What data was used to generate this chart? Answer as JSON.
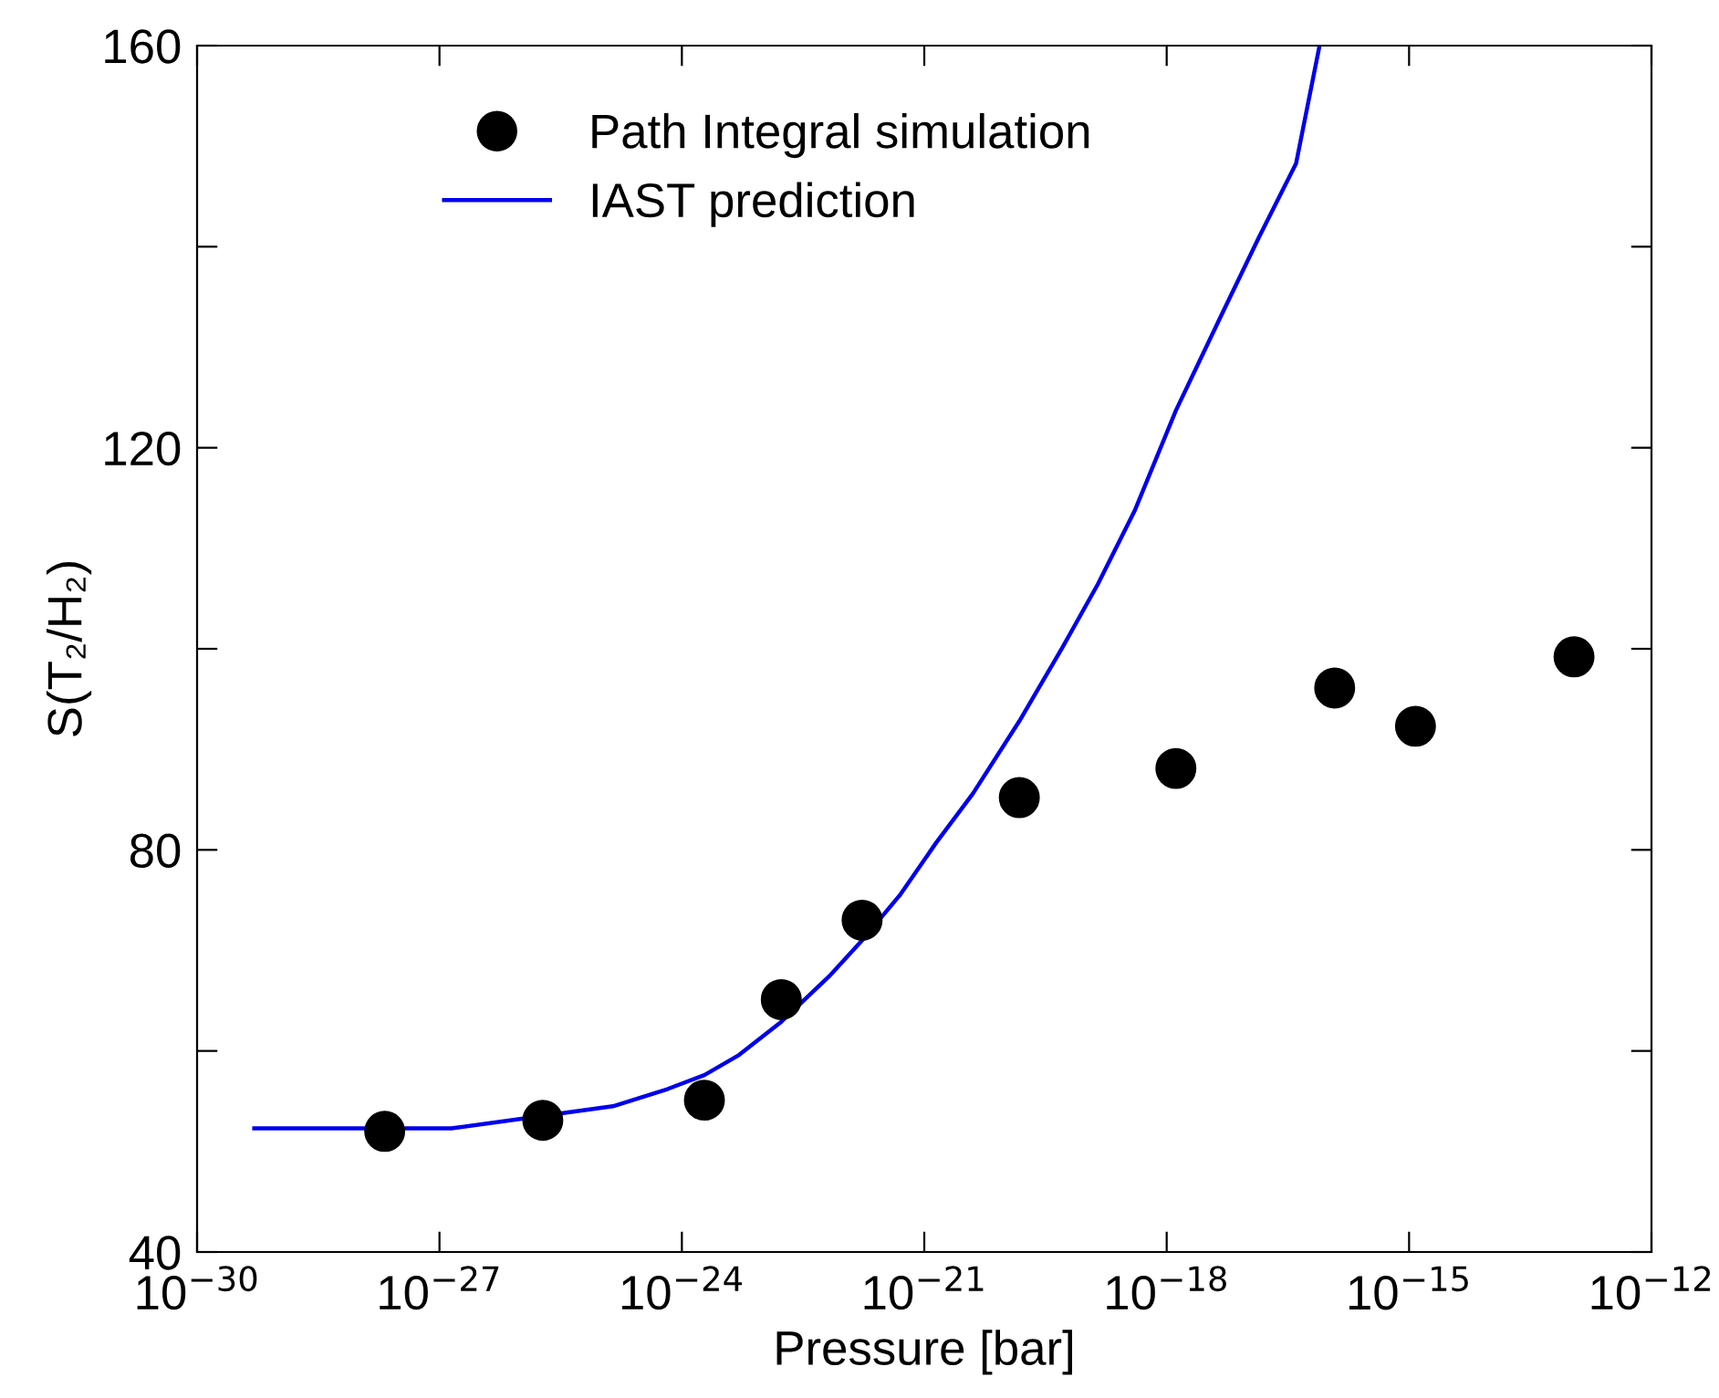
{
  "chart_data": {
    "type": "scatter",
    "xlabel": "Pressure [bar]",
    "ylabel": "S(T₂/H₂)",
    "log": "x",
    "xlim": [
      1e-30,
      1e-12
    ],
    "ylim": [
      40,
      160
    ],
    "xticks": [
      {
        "value": 1e-30,
        "label": "10$^{−30}$"
      },
      {
        "value": 1e-27,
        "label": "10$^{−27}$"
      },
      {
        "value": 1e-24,
        "label": "10$^{−24}$"
      },
      {
        "value": 1e-21,
        "label": "10$^{−21}$"
      },
      {
        "value": 1e-18,
        "label": "10$^{−18}$"
      },
      {
        "value": 1e-15,
        "label": "10$^{−15}$"
      },
      {
        "value": 1e-12,
        "label": "10$^{−12}$"
      }
    ],
    "yticks": [
      40,
      {
        "value": 60,
        "label": null
      },
      80,
      {
        "value": 100,
        "label": null
      },
      120,
      {
        "value": 140,
        "label": null
      },
      160
    ],
    "grid": false,
    "legend": "top left",
    "series": [
      {
        "name": "Path Integral simulation",
        "color": "#000000",
        "marker": "circle",
        "x": [
          2.1e-28,
          1.9e-26,
          1.9e-24,
          1.7e-23,
          1.7e-22,
          1.5e-20,
          1.3e-18,
          1.2e-16,
          1.2e-15,
          1.1e-13
        ],
        "values": [
          52.0,
          53.1,
          55.1,
          65.1,
          73.0,
          85.2,
          88.1,
          96.1,
          92.3,
          99.2
        ]
      },
      {
        "name": "IAST prediction",
        "type": "line",
        "color": "#0000ee",
        "line_style": "solid",
        "marker": "none",
        "x": [
          5.1e-30,
          1.4e-27,
          1.4e-25,
          6.6e-25,
          1.9e-24,
          5.1e-24,
          1.7e-23,
          6.6e-23,
          1.7e-22,
          5.1e-22,
          1.4e-21,
          4e-21,
          1.5e-20,
          5.1e-20,
          1.4e-19,
          4e-19,
          1.3e-18,
          5.1e-18,
          1.4e-17,
          4e-17,
          7.8e-17
        ],
        "values": [
          52.3,
          52.3,
          54.5,
          56.2,
          57.6,
          59.6,
          62.9,
          67.4,
          71.0,
          75.6,
          80.7,
          85.6,
          92.8,
          100.1,
          106.4,
          113.7,
          123.7,
          133.7,
          141.0,
          148.3,
          160.0
        ]
      }
    ]
  }
}
